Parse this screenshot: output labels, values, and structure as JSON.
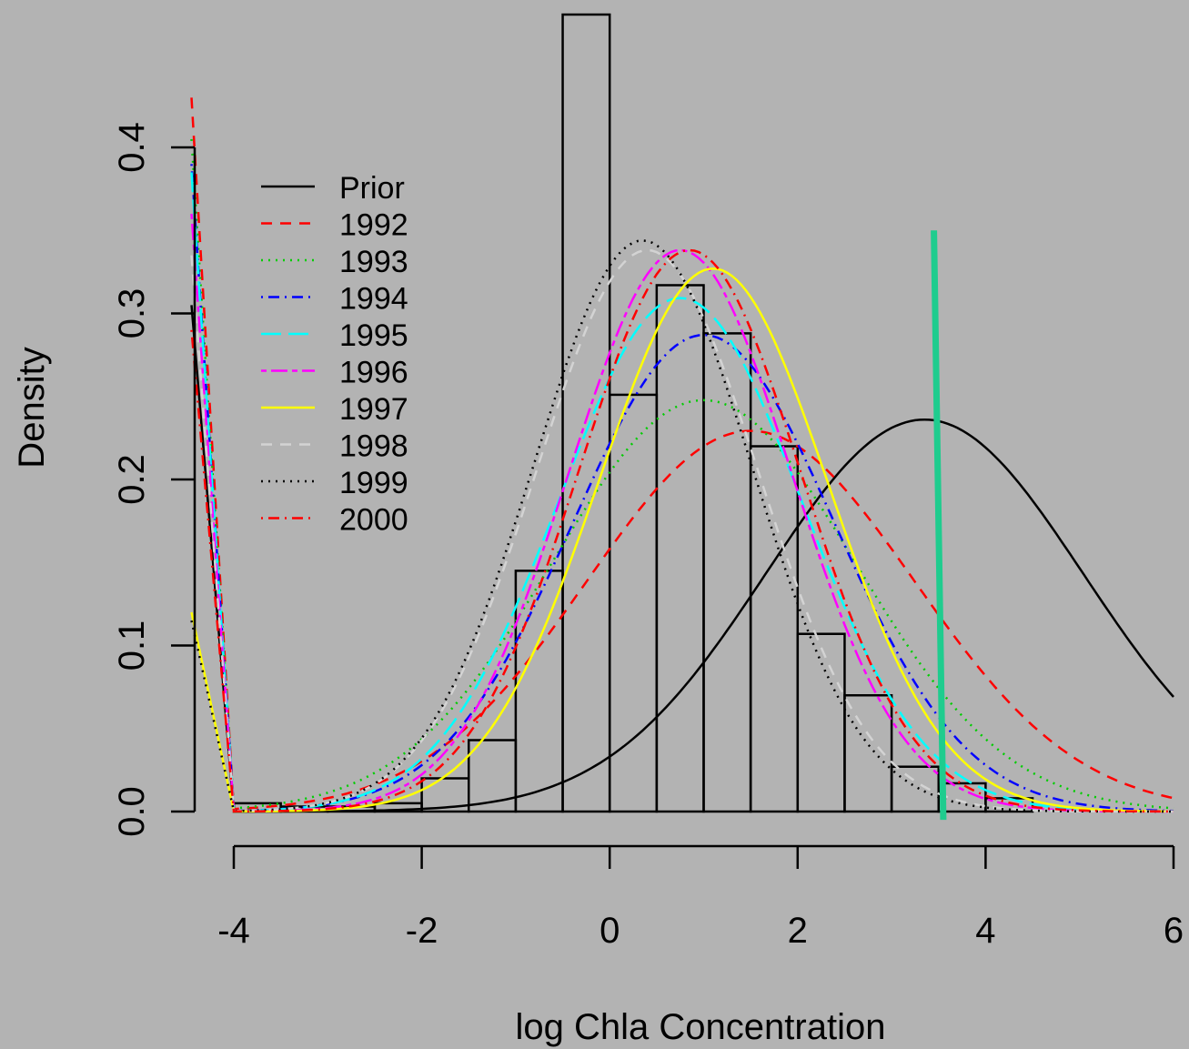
{
  "chart_data": {
    "type": "histogram",
    "title": "",
    "xlabel": "log Chla Concentration",
    "ylabel": "Density",
    "xlim": [
      -4.45,
      6
    ],
    "ylim": [
      0,
      0.48
    ],
    "x_ticks": [
      -4,
      -2,
      0,
      2,
      4,
      6
    ],
    "x_tick_labels": [
      "-4",
      "-2",
      "0",
      "2",
      "4",
      "6"
    ],
    "y_ticks": [
      0.0,
      0.1,
      0.2,
      0.3,
      0.4
    ],
    "y_tick_labels": [
      "0.0",
      "0.1",
      "0.2",
      "0.3",
      "0.4"
    ],
    "background": "#b3b3b3",
    "grid": false,
    "histogram": {
      "bin_edges": [
        -4,
        -3.5,
        -3,
        -2.5,
        -2,
        -1.5,
        -1,
        -0.5,
        0,
        0.5,
        1,
        1.5,
        2,
        2.5,
        3,
        3.5,
        4,
        4.5
      ],
      "density": [
        0.005,
        0.003,
        0.003,
        0.005,
        0.02,
        0.043,
        0.145,
        0.48,
        0.251,
        0.317,
        0.288,
        0.22,
        0.107,
        0.07,
        0.027,
        0.017,
        0.008
      ],
      "color": "#000000"
    },
    "reference_line": {
      "x1": 3.45,
      "y1": 0.35,
      "x2": 3.55,
      "y2": -0.005,
      "color": "#1fcc8e"
    },
    "series": [
      {
        "name": "Prior",
        "color": "#000000",
        "dash": "solid",
        "mean": 3.35,
        "sd": 1.69,
        "left_value": 0.305
      },
      {
        "name": "1992",
        "color": "#ff0000",
        "dash": "dashed",
        "mean": 1.5,
        "sd": 1.74,
        "left_value": 0.43
      },
      {
        "name": "1993",
        "color": "#00cd00",
        "dash": "dotted",
        "mean": 1.0,
        "sd": 1.61,
        "left_value": 0.405
      },
      {
        "name": "1994",
        "color": "#0000ff",
        "dash": "dotdash",
        "mean": 1.0,
        "sd": 1.39,
        "left_value": 0.39
      },
      {
        "name": "1995",
        "color": "#00ffff",
        "dash": "longdash",
        "mean": 0.75,
        "sd": 1.29,
        "left_value": 0.385
      },
      {
        "name": "1996",
        "color": "#ff00ff",
        "dash": "twodash",
        "mean": 0.75,
        "sd": 1.18,
        "left_value": 0.36
      },
      {
        "name": "1997",
        "color": "#ffff00",
        "dash": "solid",
        "mean": 1.1,
        "sd": 1.22,
        "left_value": 0.12
      },
      {
        "name": "1998",
        "color": "#d3d3d3",
        "dash": "dashed",
        "mean": 0.4,
        "sd": 1.18,
        "left_value": 0.335
      },
      {
        "name": "1999",
        "color": "#000000",
        "dash": "dotted",
        "mean": 0.35,
        "sd": 1.16,
        "left_value": 0.115
      },
      {
        "name": "2000",
        "color": "#ff0000",
        "dash": "dotdash",
        "mean": 0.85,
        "sd": 1.18,
        "left_value": 0.29
      }
    ],
    "legend": {
      "position": "top-left"
    }
  }
}
